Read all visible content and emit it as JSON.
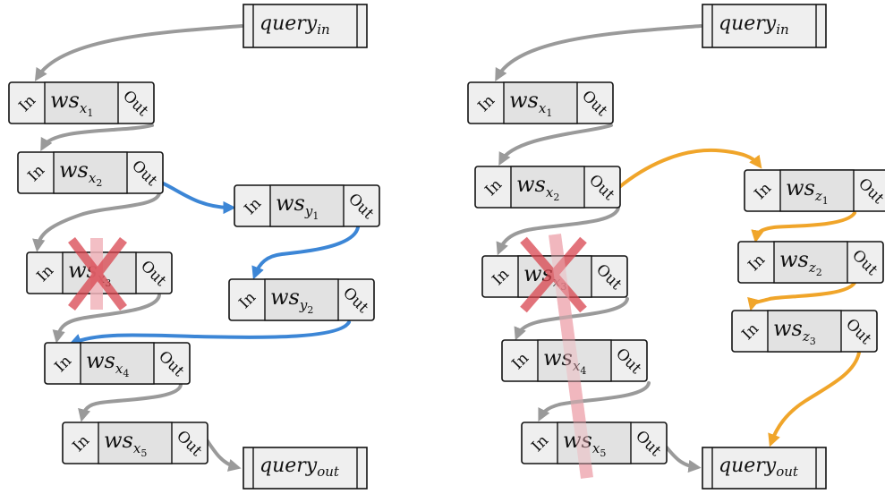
{
  "colors": {
    "default_edge": "#9a9a9a",
    "branch_y": "#3c86d6",
    "branch_z": "#f0a52a",
    "failure": "#d9454f",
    "reroute_highlight": "#f1b4bb"
  },
  "port_labels": {
    "in": "In",
    "out": "Out"
  },
  "panels": [
    {
      "id": "left",
      "query_in": {
        "base": "query",
        "sub": "in"
      },
      "query_out": {
        "base": "query",
        "sub": "out"
      },
      "nodes": [
        {
          "id": "x1",
          "base": "ws",
          "sub": "x",
          "subsub": "1"
        },
        {
          "id": "x2",
          "base": "ws",
          "sub": "x",
          "subsub": "2"
        },
        {
          "id": "x3",
          "base": "ws",
          "sub": "x",
          "subsub": "3",
          "failed": true
        },
        {
          "id": "x4",
          "base": "ws",
          "sub": "x",
          "subsub": "4"
        },
        {
          "id": "x5",
          "base": "ws",
          "sub": "x",
          "subsub": "5"
        },
        {
          "id": "y1",
          "base": "ws",
          "sub": "y",
          "subsub": "1"
        },
        {
          "id": "y2",
          "base": "ws",
          "sub": "y",
          "subsub": "2"
        }
      ]
    },
    {
      "id": "right",
      "query_in": {
        "base": "query",
        "sub": "in"
      },
      "query_out": {
        "base": "query",
        "sub": "out"
      },
      "nodes": [
        {
          "id": "x1",
          "base": "ws",
          "sub": "x",
          "subsub": "1"
        },
        {
          "id": "x2",
          "base": "ws",
          "sub": "x",
          "subsub": "2"
        },
        {
          "id": "x3",
          "base": "ws",
          "sub": "x",
          "subsub": "3",
          "failed": true
        },
        {
          "id": "x4",
          "base": "ws",
          "sub": "x",
          "subsub": "4",
          "bypassed": true
        },
        {
          "id": "x5",
          "base": "ws",
          "sub": "x",
          "subsub": "5",
          "bypassed": true
        },
        {
          "id": "z1",
          "base": "ws",
          "sub": "z",
          "subsub": "1"
        },
        {
          "id": "z2",
          "base": "ws",
          "sub": "z",
          "subsub": "2"
        },
        {
          "id": "z3",
          "base": "ws",
          "sub": "z",
          "subsub": "3"
        }
      ]
    }
  ]
}
